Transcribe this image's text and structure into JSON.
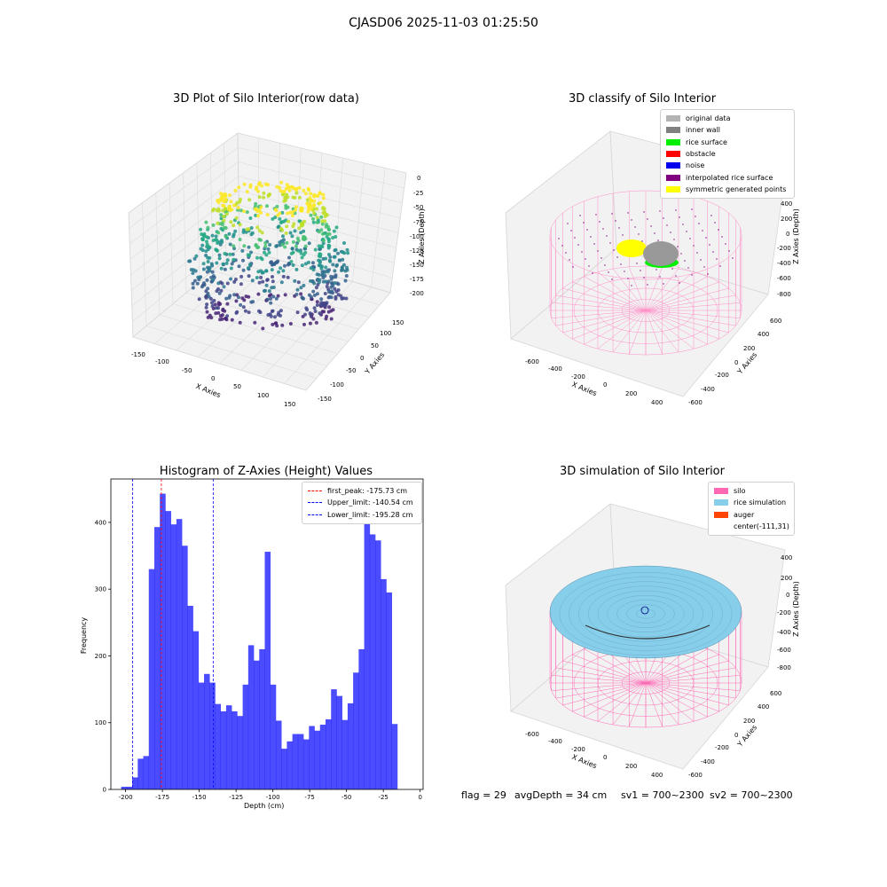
{
  "figure": {
    "suptitle": "CJASD06 2025-11-03 01:25:50"
  },
  "chart_data": [
    {
      "type": "scatter",
      "title": "3D Plot of Silo Interior(row data)",
      "xlabel": "X Axies",
      "ylabel": "Y Axies",
      "zlabel": "Z Axies (Depth)",
      "x_ticks": [
        "-150",
        "-100",
        "-50",
        "0",
        "50",
        "100",
        "150"
      ],
      "y_ticks": [
        "150",
        "100",
        "50",
        "0",
        "-50",
        "-100",
        "-150"
      ],
      "z_ticks": [
        "0",
        "-25",
        "-50",
        "-75",
        "-100",
        "-125",
        "-150",
        "-175",
        "-200"
      ],
      "colormap": "viridis",
      "zlim": [
        -200,
        0
      ]
    },
    {
      "type": "scatter",
      "title": "3D classify of Silo Interior",
      "xlabel": "X Axies",
      "ylabel": "Y Axies",
      "zlabel": "Z Axies (Depth)",
      "x_ticks": [
        "-600",
        "-400",
        "-200",
        "0",
        "200",
        "400"
      ],
      "y_ticks": [
        "600",
        "400",
        "200",
        "0",
        "-200",
        "-400",
        "-600"
      ],
      "z_ticks": [
        "400",
        "200",
        "0",
        "-200",
        "-400",
        "-600",
        "-800"
      ],
      "legend": [
        {
          "label": "original data",
          "color": "#b3b3b3"
        },
        {
          "label": "inner wall",
          "color": "#808080"
        },
        {
          "label": "rice surface",
          "color": "#00ee00"
        },
        {
          "label": "obstacle",
          "color": "#ff0000"
        },
        {
          "label": "noise",
          "color": "#0000ee"
        },
        {
          "label": "interpolated rice surface",
          "color": "#800080"
        },
        {
          "label": "symmetric generated points",
          "color": "#ffff00"
        }
      ],
      "legend_position": "top-right"
    },
    {
      "type": "bar",
      "title": "Histogram of Z-Axies (Height) Values",
      "xlabel": "Depth (cm)",
      "ylabel": "Frequency",
      "xlim": [
        -210,
        2
      ],
      "ylim": [
        0,
        465
      ],
      "x_ticks": [
        "-200",
        "-175",
        "-150",
        "-125",
        "-100",
        "-75",
        "-50",
        "-25",
        "0"
      ],
      "y_ticks": [
        "0",
        "100",
        "200",
        "300",
        "400"
      ],
      "bin_edges_start": -203.0,
      "bin_width": 3.75,
      "values": [
        4,
        4,
        18,
        46,
        50,
        330,
        393,
        443,
        417,
        397,
        405,
        365,
        275,
        237,
        160,
        173,
        160,
        128,
        117,
        126,
        117,
        110,
        157,
        216,
        193,
        210,
        356,
        157,
        103,
        61,
        72,
        83,
        83,
        75,
        95,
        88,
        97,
        105,
        150,
        140,
        104,
        129,
        175,
        210,
        398,
        382,
        373,
        315,
        295,
        98
      ],
      "bar_color": "#0000ff",
      "lines": [
        {
          "label": "first_peak: -175.73 cm",
          "x": -175.73,
          "color": "#ff0000"
        },
        {
          "label": "Upper_limit: -140.54 cm",
          "x": -140.54,
          "color": "#0000ff"
        },
        {
          "label": "Lower_limit: -195.28 cm",
          "x": -195.28,
          "color": "#0000ff"
        }
      ],
      "legend_position": "top-right"
    },
    {
      "type": "scatter",
      "title": "3D simulation of Silo Interior",
      "xlabel": "X Axies",
      "ylabel": "Y Axies",
      "zlabel": "Z Axies (Depth)",
      "x_ticks": [
        "-600",
        "-400",
        "-200",
        "0",
        "200",
        "400"
      ],
      "y_ticks": [
        "600",
        "400",
        "200",
        "0",
        "-200",
        "-400",
        "-600"
      ],
      "z_ticks": [
        "400",
        "200",
        "0",
        "-200",
        "-400",
        "-600",
        "-800"
      ],
      "legend": [
        {
          "label": "silo",
          "color": "#ff69b4"
        },
        {
          "label": "rice simulation",
          "color": "#87ceeb"
        },
        {
          "label": "auger",
          "color": "#ff4500"
        },
        {
          "label": "center(-111,31)",
          "color": ""
        }
      ],
      "legend_position": "top-right"
    }
  ],
  "status": {
    "flag": "flag = 29",
    "avg_depth": "avgDepth = 34 cm",
    "sv1": "sv1 = 700~2300",
    "sv2": "sv2 = 700~2300"
  }
}
